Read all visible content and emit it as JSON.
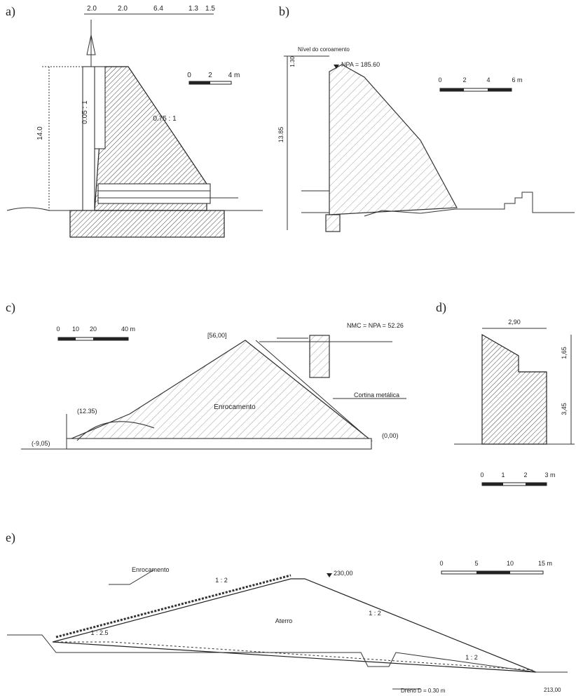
{
  "a": {
    "label": "a)",
    "top_dimensions": [
      "2.0",
      "2.0",
      "6.4",
      "1.3",
      "1.5"
    ],
    "height": "14.0",
    "upstream_slope": "0.05 : 1",
    "downstream_slope": "0.75 : 1",
    "scale": [
      "0",
      "2",
      "4 m"
    ]
  },
  "b": {
    "label": "b)",
    "crest_note": "Nível do coroamento",
    "freeboard": "1.30",
    "water_level": "NPA = 185.60",
    "height": "13.85",
    "scale": [
      "0",
      "2",
      "4",
      "6 m"
    ]
  },
  "c": {
    "label": "c)",
    "crest_level": "[56,00]",
    "water_level": "NMC = NPA = 52.26",
    "membrane": "Cortina metálica",
    "body": "Enrocamento",
    "berm_level": "(12.35)",
    "base_level": "(-9,05)",
    "toe_level": "(0,00)",
    "scale": [
      "0",
      "10",
      "20",
      "40 m"
    ]
  },
  "d": {
    "label": "d)",
    "width": "2,90",
    "upper_height": "1,65",
    "lower_height": "3,45",
    "scale": [
      "0",
      "1",
      "2",
      "3 m"
    ]
  },
  "e": {
    "label": "e)",
    "crest_level": "230,00",
    "riprap": "Enrocamento",
    "upstream_upper_slope": "1 : 2",
    "downstream_upper_slope": "1 : 2",
    "upstream_lower_slope": "1 : 2.5",
    "body": "Aterro",
    "downstream_lower_slope": "1 : 2",
    "drain": "Dreno   D = 0.30 m",
    "toe_level": "213,00",
    "scale": [
      "0",
      "5",
      "10",
      "15 m"
    ]
  }
}
